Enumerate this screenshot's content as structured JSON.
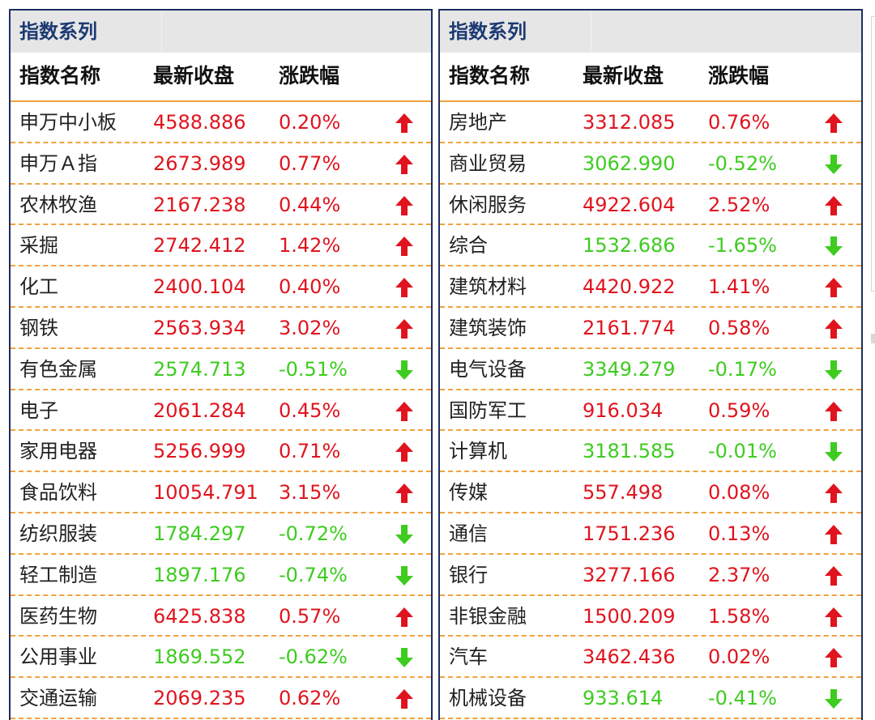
{
  "panels": [
    {
      "title": "指数系列",
      "headers": {
        "name": "指数名称",
        "close": "最新收盘",
        "change": "涨跌幅"
      },
      "rows": [
        {
          "name": "申万中小板",
          "close": "4588.886",
          "change": "0.20%",
          "dir": "up"
        },
        {
          "name": "申万Ａ指",
          "close": "2673.989",
          "change": "0.77%",
          "dir": "up"
        },
        {
          "name": "农林牧渔",
          "close": "2167.238",
          "change": "0.44%",
          "dir": "up"
        },
        {
          "name": "采掘",
          "close": "2742.412",
          "change": "1.42%",
          "dir": "up"
        },
        {
          "name": "化工",
          "close": "2400.104",
          "change": "0.40%",
          "dir": "up"
        },
        {
          "name": "钢铁",
          "close": "2563.934",
          "change": "3.02%",
          "dir": "up"
        },
        {
          "name": "有色金属",
          "close": "2574.713",
          "change": "-0.51%",
          "dir": "down"
        },
        {
          "name": "电子",
          "close": "2061.284",
          "change": "0.45%",
          "dir": "up"
        },
        {
          "name": "家用电器",
          "close": "5256.999",
          "change": "0.71%",
          "dir": "up"
        },
        {
          "name": "食品饮料",
          "close": "10054.791",
          "change": "3.15%",
          "dir": "up"
        },
        {
          "name": "纺织服装",
          "close": "1784.297",
          "change": "-0.72%",
          "dir": "down"
        },
        {
          "name": "轻工制造",
          "close": "1897.176",
          "change": "-0.74%",
          "dir": "down"
        },
        {
          "name": "医药生物",
          "close": "6425.838",
          "change": "0.57%",
          "dir": "up"
        },
        {
          "name": "公用事业",
          "close": "1869.552",
          "change": "-0.62%",
          "dir": "down"
        },
        {
          "name": "交通运输",
          "close": "2069.235",
          "change": "0.62%",
          "dir": "up"
        }
      ]
    },
    {
      "title": "指数系列",
      "headers": {
        "name": "指数名称",
        "close": "最新收盘",
        "change": "涨跌幅"
      },
      "rows": [
        {
          "name": "房地产",
          "close": "3312.085",
          "change": "0.76%",
          "dir": "up"
        },
        {
          "name": "商业贸易",
          "close": "3062.990",
          "change": "-0.52%",
          "dir": "down"
        },
        {
          "name": "休闲服务",
          "close": "4922.604",
          "change": "2.52%",
          "dir": "up"
        },
        {
          "name": "综合",
          "close": "1532.686",
          "change": "-1.65%",
          "dir": "down"
        },
        {
          "name": "建筑材料",
          "close": "4420.922",
          "change": "1.41%",
          "dir": "up"
        },
        {
          "name": "建筑装饰",
          "close": "2161.774",
          "change": "0.58%",
          "dir": "up"
        },
        {
          "name": "电气设备",
          "close": "3349.279",
          "change": "-0.17%",
          "dir": "down"
        },
        {
          "name": "国防军工",
          "close": "916.034",
          "change": "0.59%",
          "dir": "up"
        },
        {
          "name": "计算机",
          "close": "3181.585",
          "change": "-0.01%",
          "dir": "down"
        },
        {
          "name": "传媒",
          "close": "557.498",
          "change": "0.08%",
          "dir": "up"
        },
        {
          "name": "通信",
          "close": "1751.236",
          "change": "0.13%",
          "dir": "up"
        },
        {
          "name": "银行",
          "close": "3277.166",
          "change": "2.37%",
          "dir": "up"
        },
        {
          "name": "非银金融",
          "close": "1500.209",
          "change": "1.58%",
          "dir": "up"
        },
        {
          "name": "汽车",
          "close": "3462.436",
          "change": "0.02%",
          "dir": "up"
        },
        {
          "name": "机械设备",
          "close": "933.614",
          "change": "-0.41%",
          "dir": "down"
        }
      ]
    }
  ],
  "colors": {
    "up": "#e0141e",
    "down": "#3dcc1f",
    "border": "#1c2f63",
    "dash": "#f0a23c"
  },
  "icons": {
    "up": "arrow-up-icon",
    "down": "arrow-down-icon"
  }
}
